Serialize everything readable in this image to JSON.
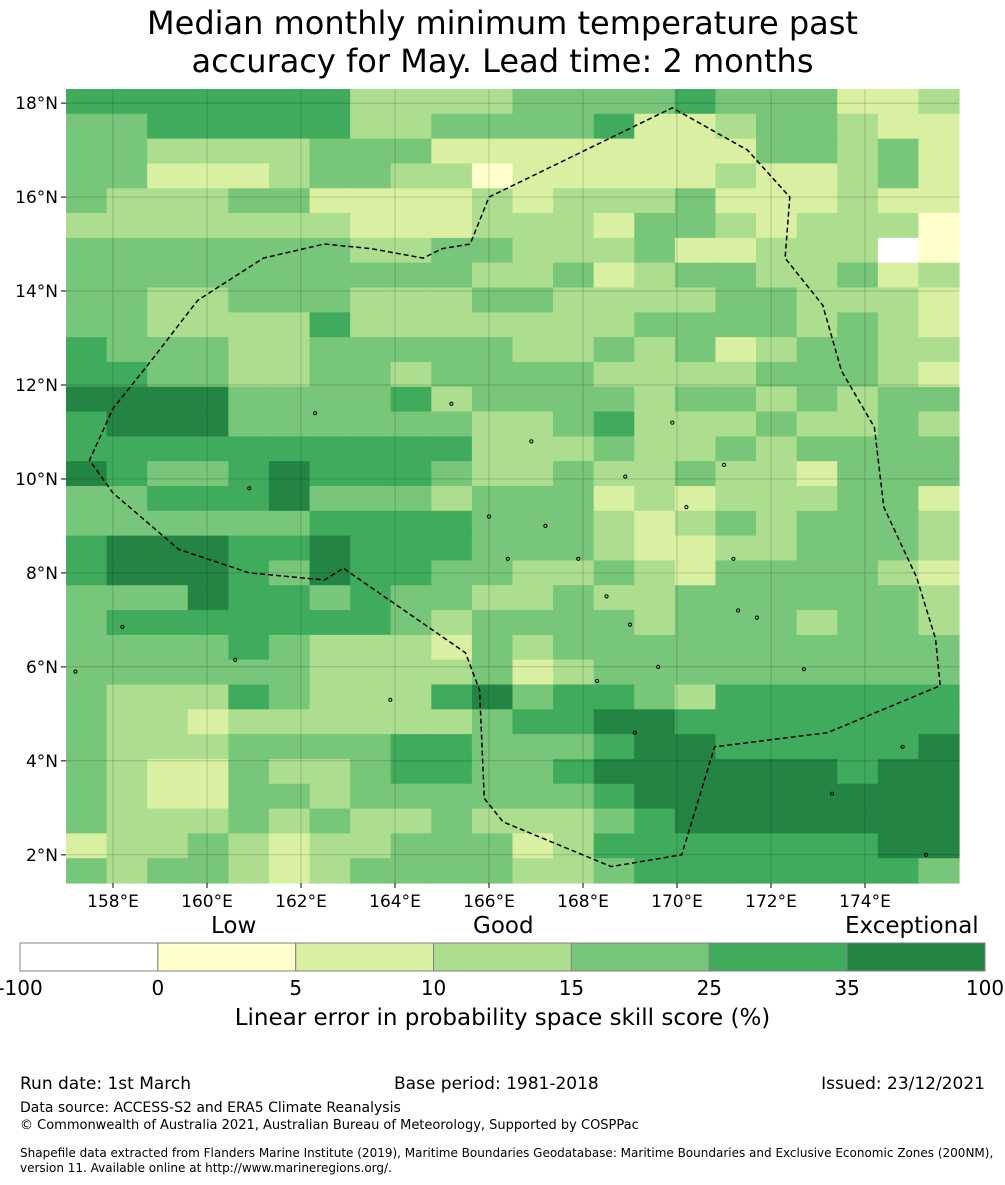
{
  "title": {
    "line1": "Median monthly minimum temperature past",
    "line2": "accuracy for May. Lead time: 2 months"
  },
  "map": {
    "lon_range": [
      157.0,
      176.0
    ],
    "lat_range": [
      1.4,
      18.3
    ],
    "lon_ticks": [
      "158°E",
      "160°E",
      "162°E",
      "164°E",
      "166°E",
      "168°E",
      "170°E",
      "172°E",
      "174°E"
    ],
    "lat_ticks": [
      "18°N",
      "16°N",
      "14°N",
      "12°N",
      "10°N",
      "8°N",
      "6°N",
      "4°N",
      "2°N"
    ],
    "grid_rows": [
      "5555555333344445444223",
      "4455555334444522344322",
      "4433334442222222244342",
      "4422234433122222322342",
      "4333442222323334222322",
      "3333333222333244323331",
      "4444444334433342233301",
      "4444444444334234433423",
      "4433444333443333443332",
      "4433335333333344443432",
      "5444334444433434234433",
      "5544334434444333344432",
      "6666444453444434434344",
      "5666444444334533343343",
      "5555555555333433434444",
      "6544565554334334332444",
      "4455564443444232333442",
      "4444445555444323434443",
      "5666556555444322334443",
      "5666546554433432444432",
      "4446554544334334444443",
      "4555555543444434443443",
      "4444543332434444444444",
      "4444443333423444444444",
      "4333543335645543555555",
      "4332333333455665555555",
      "4333444455444566555556",
      "4322433455445666666566",
      "4322443444444566666666",
      "4333434334333456666666",
      "2334323344423555555566",
      "4344323444433455555554"
    ],
    "color_levels": [
      "#ffffff",
      "#ffffcc",
      "#d9f0a3",
      "#addd8e",
      "#78c679",
      "#41ab5d",
      "#238443"
    ],
    "boundary": [
      [
        166.0,
        16.0
      ],
      [
        169.9,
        17.9
      ],
      [
        171.5,
        17.0
      ],
      [
        172.4,
        16.0
      ],
      [
        172.3,
        14.7
      ],
      [
        173.1,
        13.7
      ],
      [
        173.5,
        12.3
      ],
      [
        174.2,
        11.1
      ],
      [
        174.4,
        9.4
      ],
      [
        175.1,
        7.9
      ],
      [
        175.5,
        6.6
      ],
      [
        175.6,
        5.6
      ],
      [
        173.2,
        4.6
      ],
      [
        170.8,
        4.3
      ],
      [
        170.1,
        2.0
      ],
      [
        168.6,
        1.75
      ],
      [
        166.3,
        2.7
      ],
      [
        165.9,
        3.2
      ],
      [
        165.8,
        5.5
      ],
      [
        165.5,
        6.3
      ],
      [
        162.9,
        8.1
      ],
      [
        162.5,
        7.85
      ],
      [
        160.9,
        8.0
      ],
      [
        159.4,
        8.5
      ],
      [
        158.0,
        9.7
      ],
      [
        157.5,
        10.4
      ],
      [
        158.0,
        11.5
      ],
      [
        158.8,
        12.5
      ],
      [
        159.8,
        13.8
      ],
      [
        161.2,
        14.7
      ],
      [
        162.5,
        15.0
      ],
      [
        163.5,
        14.9
      ],
      [
        164.6,
        14.7
      ],
      [
        165.0,
        14.9
      ],
      [
        165.6,
        15.0
      ],
      [
        166.0,
        16.0
      ]
    ],
    "islands": [
      [
        158.2,
        6.85
      ],
      [
        160.6,
        6.15
      ],
      [
        166.0,
        9.2
      ],
      [
        166.9,
        10.8
      ],
      [
        168.9,
        10.05
      ],
      [
        170.2,
        9.4
      ],
      [
        171.2,
        8.3
      ],
      [
        171.3,
        7.2
      ],
      [
        171.7,
        7.05
      ],
      [
        172.7,
        5.95
      ],
      [
        173.3,
        3.3
      ],
      [
        174.8,
        4.3
      ],
      [
        175.3,
        2.0
      ],
      [
        163.9,
        5.3
      ],
      [
        169.1,
        4.6
      ],
      [
        168.3,
        5.7
      ],
      [
        165.2,
        11.6
      ],
      [
        160.9,
        9.8
      ],
      [
        169.9,
        11.2
      ],
      [
        171.0,
        10.3
      ],
      [
        167.2,
        9.0
      ],
      [
        167.9,
        8.3
      ],
      [
        168.5,
        7.5
      ],
      [
        169.0,
        6.9
      ],
      [
        169.6,
        6.0
      ],
      [
        157.2,
        5.9
      ],
      [
        162.3,
        11.4
      ],
      [
        166.4,
        8.3
      ]
    ]
  },
  "colorbar": {
    "category_low": "Low",
    "category_good": "Good",
    "category_exceptional": "Exceptional",
    "boundaries": [
      "-100",
      "0",
      "5",
      "10",
      "15",
      "25",
      "35",
      "100"
    ],
    "colors": [
      "#ffffff",
      "#ffffcc",
      "#d9f0a3",
      "#addd8e",
      "#78c679",
      "#41ab5d",
      "#238443"
    ],
    "label": "Linear error in probability space skill score (%)"
  },
  "footer": {
    "run_date": "Run date: 1st March",
    "base_period": "Base period: 1981-2018",
    "issued": "Issued: 23/12/2021",
    "data_source": "Data source: ACCESS-S2 and ERA5 Climate Reanalysis",
    "copyright": "© Commonwealth of Australia 2021, Australian Bureau of Meteorology, Supported by COSPPac",
    "shapefile_line1": "Shapefile data extracted from Flanders Marine Institute (2019), Maritime Boundaries Geodatabase: Maritime Boundaries and Exclusive Economic Zones (200NM),",
    "shapefile_line2": "version 11. Available online at http://www.marineregions.org/."
  }
}
